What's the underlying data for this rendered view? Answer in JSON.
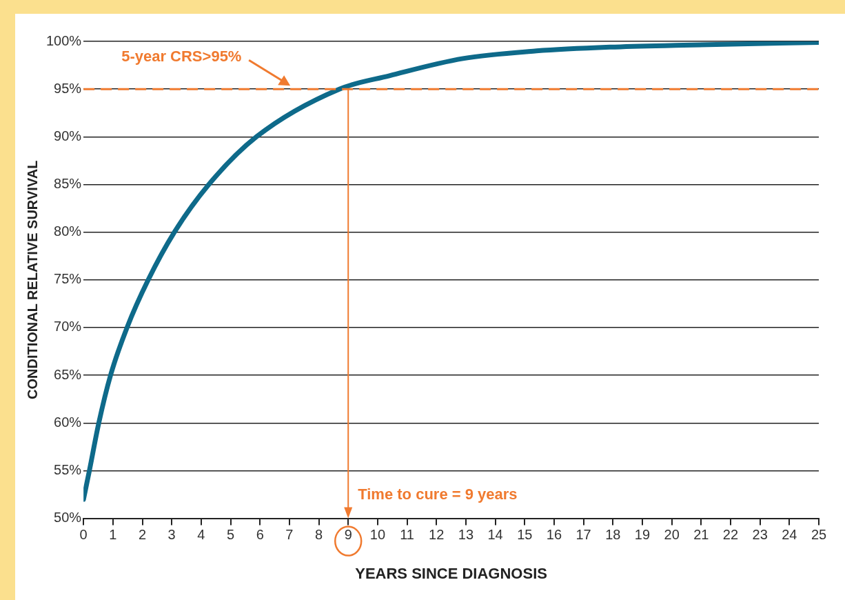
{
  "chart_data": {
    "type": "line",
    "xlabel": "YEARS SINCE DIAGNOSIS",
    "ylabel": "CONDITIONAL RELATIVE SURVIVAL",
    "x": [
      0,
      0.2,
      0.52,
      0.92,
      1.48,
      2.2,
      3.09,
      4.26,
      5.88,
      8.7,
      10.4,
      12.9,
      15.4,
      17.9,
      20.4,
      25
    ],
    "series": [
      {
        "color": "#0e6a8a",
        "values": [
          52,
          55,
          60,
          65,
          70,
          75,
          80,
          85,
          90,
          95,
          96.4,
          98.2,
          99,
          99.4,
          99.6,
          99.9
        ]
      }
    ],
    "xlim": [
      0,
      25
    ],
    "xticks": [
      0,
      1,
      2,
      3,
      4,
      5,
      6,
      7,
      8,
      9,
      10,
      11,
      12,
      13,
      14,
      15,
      16,
      17,
      18,
      19,
      20,
      21,
      22,
      23,
      24,
      25
    ],
    "ylim": [
      50,
      100
    ],
    "yticks": [
      {
        "value": 50,
        "label": "50%"
      },
      {
        "value": 55,
        "label": "55%"
      },
      {
        "value": 60,
        "label": "60%"
      },
      {
        "value": 65,
        "label": "65%"
      },
      {
        "value": 70,
        "label": "70%"
      },
      {
        "value": 75,
        "label": "75%"
      },
      {
        "value": 80,
        "label": "80%"
      },
      {
        "value": 85,
        "label": "85%"
      },
      {
        "value": 90,
        "label": "90%"
      },
      {
        "value": 95,
        "label": "95%"
      },
      {
        "value": 100,
        "label": "100%"
      }
    ],
    "grid": "y",
    "legend": false,
    "marker": "none",
    "line_style": "solid",
    "ref_lines": [
      {
        "axis": "y",
        "value": 95,
        "label": "5-year CRS>95%",
        "color": "#f07a2f",
        "line_style": "dashed"
      },
      {
        "axis": "x",
        "value": 9,
        "label": "Time to cure = 9 years",
        "color": "#f07a2f",
        "line_style": "solid"
      }
    ]
  }
}
